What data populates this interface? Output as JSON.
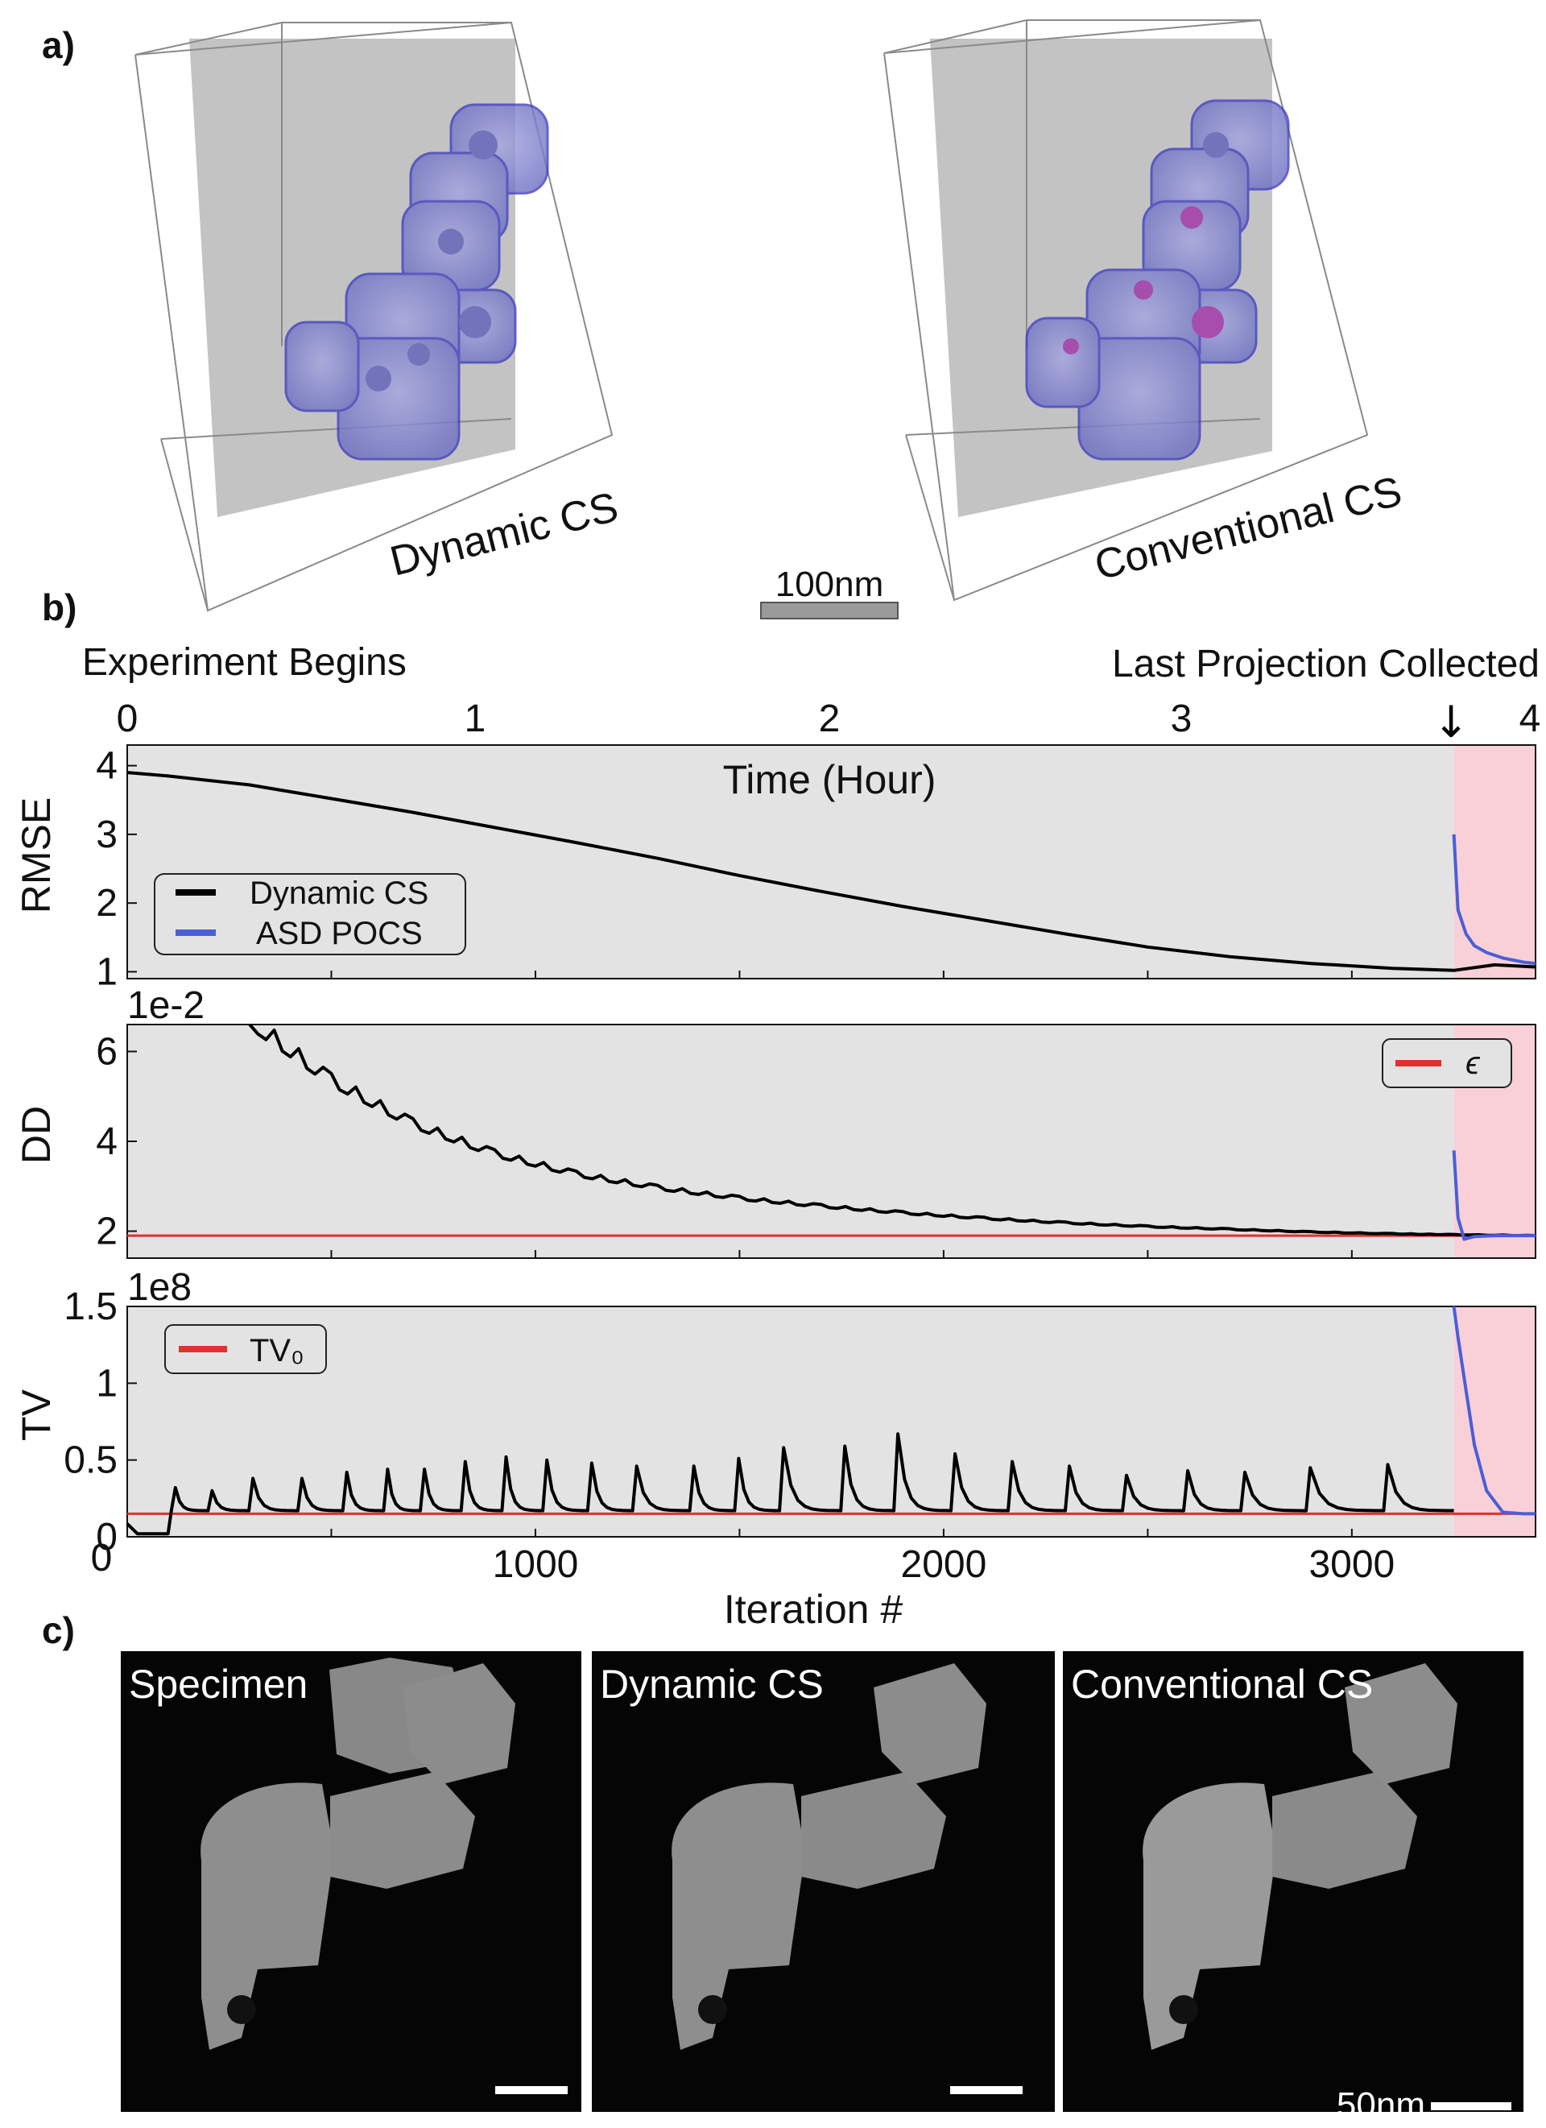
{
  "panel_labels": {
    "a": "a)",
    "b": "b)",
    "c": "c)"
  },
  "panel_a": {
    "left_label": "Dynamic CS",
    "right_label": "Conventional CS",
    "scale_bar": "100nm"
  },
  "panel_b": {
    "top_left_text": "Experiment Begins",
    "top_right_text": "Last Projection Collected",
    "time_axis_label": "Time (Hour)",
    "time_ticks": [
      "0",
      "1",
      "2",
      "3",
      "4"
    ],
    "x_axis_label": "Iteration #",
    "x_ticks": [
      "1000",
      "2000",
      "3000"
    ],
    "x_zero": "0",
    "colors": {
      "dynamic": "#000000",
      "asd": "#4a5fd6",
      "threshold": "#e03030",
      "plot_bg": "#e3e3e3",
      "post_bg": "#f9d0d8"
    }
  },
  "panel_c": {
    "titles": [
      "Specimen",
      "Dynamic CS",
      "Conventional CS"
    ],
    "scale_bar": "50nm"
  },
  "chart_data": [
    {
      "type": "line",
      "ylabel": "RMSE",
      "xlim": [
        0,
        3450
      ],
      "ylim": [
        0.9,
        4.3
      ],
      "yticks": [
        "1",
        "2",
        "3",
        "4"
      ],
      "last_projection_iteration": 3250,
      "legend": [
        "Dynamic CS",
        "ASD POCS"
      ],
      "series": [
        {
          "name": "Dynamic CS",
          "x": [
            0,
            100,
            300,
            500,
            700,
            900,
            1100,
            1300,
            1500,
            1700,
            1900,
            2100,
            2300,
            2500,
            2700,
            2900,
            3100,
            3250,
            3350,
            3450
          ],
          "y": [
            3.9,
            3.85,
            3.72,
            3.52,
            3.32,
            3.1,
            2.88,
            2.65,
            2.4,
            2.17,
            1.95,
            1.75,
            1.55,
            1.36,
            1.22,
            1.12,
            1.05,
            1.02,
            1.1,
            1.07
          ]
        },
        {
          "name": "ASD POCS",
          "x": [
            3250,
            3260,
            3280,
            3300,
            3330,
            3370,
            3420,
            3450
          ],
          "y": [
            3.0,
            1.9,
            1.55,
            1.38,
            1.28,
            1.2,
            1.14,
            1.12
          ]
        }
      ]
    },
    {
      "type": "line",
      "ylabel": "DD",
      "exponent": "1e-2",
      "xlim": [
        0,
        3450
      ],
      "ylim": [
        1.4,
        6.6
      ],
      "yticks": [
        "2",
        "4",
        "6"
      ],
      "legend": [
        "ϵ"
      ],
      "epsilon": 1.9,
      "series": [
        {
          "name": "Dynamic CS",
          "x": [
            300,
            500,
            700,
            900,
            1100,
            1300,
            1500,
            1700,
            1900,
            2100,
            2300,
            2500,
            2700,
            2900,
            3100,
            3250,
            3450
          ],
          "y": [
            6.6,
            5.3,
            4.35,
            3.7,
            3.25,
            2.95,
            2.72,
            2.55,
            2.4,
            2.28,
            2.18,
            2.1,
            2.04,
            1.98,
            1.94,
            1.92,
            1.9
          ]
        },
        {
          "name": "ASD POCS",
          "x": [
            3250,
            3260,
            3275,
            3300,
            3350,
            3450
          ],
          "y": [
            3.8,
            2.3,
            1.82,
            1.88,
            1.9,
            1.9
          ]
        }
      ]
    },
    {
      "type": "line",
      "ylabel": "TV",
      "exponent": "1e8",
      "xlim": [
        0,
        3450
      ],
      "ylim": [
        0,
        1.5
      ],
      "yticks": [
        "0",
        "0.5",
        "1",
        "1.5"
      ],
      "legend": [
        "TV₀"
      ],
      "tv0": 0.15,
      "series": [
        {
          "name": "Dynamic CS",
          "peak_iterations": [
            110,
            200,
            300,
            420,
            530,
            630,
            720,
            820,
            920,
            1020,
            1130,
            1240,
            1380,
            1490,
            1600,
            1750,
            1880,
            2020,
            2160,
            2300,
            2440,
            2590,
            2730,
            2890,
            3080
          ],
          "peak_values": [
            0.32,
            0.3,
            0.38,
            0.38,
            0.42,
            0.44,
            0.44,
            0.49,
            0.52,
            0.5,
            0.48,
            0.46,
            0.46,
            0.51,
            0.58,
            0.59,
            0.67,
            0.54,
            0.49,
            0.46,
            0.4,
            0.43,
            0.42,
            0.45,
            0.47
          ],
          "baseline": 0.17
        },
        {
          "name": "ASD POCS",
          "x": [
            3250,
            3260,
            3280,
            3300,
            3330,
            3370,
            3420,
            3450
          ],
          "y": [
            1.5,
            1.3,
            0.95,
            0.6,
            0.3,
            0.16,
            0.15,
            0.15
          ]
        }
      ]
    }
  ]
}
